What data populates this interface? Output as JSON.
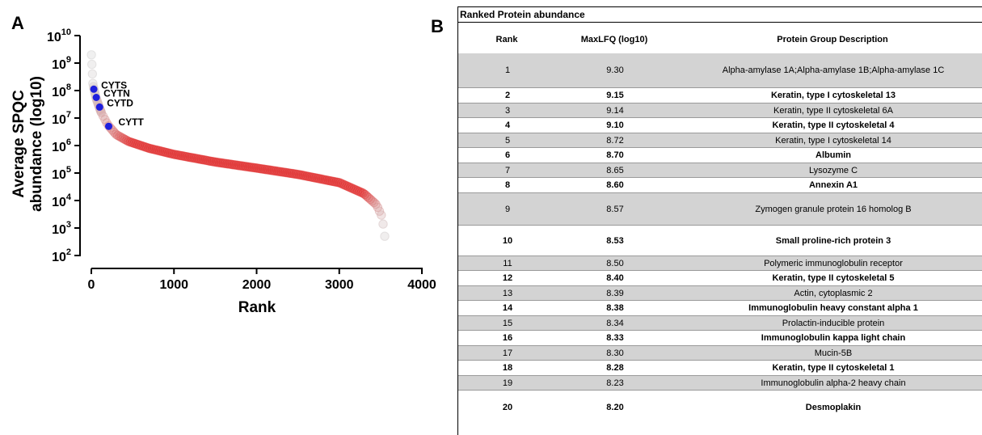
{
  "panels": {
    "a_letter": "A",
    "b_letter": "B"
  },
  "chart_data": {
    "type": "scatter",
    "xlabel": "Rank",
    "ylabel_line1": "Average SPQC",
    "ylabel_line2": "abundance (log10)",
    "xlim": [
      0,
      4000
    ],
    "ylim_log10": [
      2,
      10
    ],
    "xticks": [
      {
        "value": 0,
        "label": "0"
      },
      {
        "value": 1000,
        "label": "1000"
      },
      {
        "value": 2000,
        "label": "2000"
      },
      {
        "value": 3000,
        "label": "3000"
      },
      {
        "value": 4000,
        "label": "4000"
      }
    ],
    "yticks": [
      {
        "value": 2,
        "base": "10",
        "exp": "2"
      },
      {
        "value": 3,
        "base": "10",
        "exp": "3"
      },
      {
        "value": 4,
        "base": "10",
        "exp": "4"
      },
      {
        "value": 5,
        "base": "10",
        "exp": "5"
      },
      {
        "value": 6,
        "base": "10",
        "exp": "6"
      },
      {
        "value": 7,
        "base": "10",
        "exp": "7"
      },
      {
        "value": 8,
        "base": "10",
        "exp": "8"
      },
      {
        "value": 9,
        "base": "10",
        "exp": "9"
      },
      {
        "value": 10,
        "base": "10",
        "exp": "10"
      }
    ],
    "series": [
      {
        "color_start": "#d3d3d3",
        "color_end": "#e03030",
        "curve": [
          {
            "x": 1,
            "y": 9.3
          },
          {
            "x": 20,
            "y": 8.2
          },
          {
            "x": 60,
            "y": 7.7
          },
          {
            "x": 120,
            "y": 7.2
          },
          {
            "x": 200,
            "y": 6.75
          },
          {
            "x": 300,
            "y": 6.4
          },
          {
            "x": 450,
            "y": 6.15
          },
          {
            "x": 700,
            "y": 5.9
          },
          {
            "x": 1000,
            "y": 5.68
          },
          {
            "x": 1500,
            "y": 5.4
          },
          {
            "x": 2000,
            "y": 5.18
          },
          {
            "x": 2500,
            "y": 4.95
          },
          {
            "x": 3000,
            "y": 4.65
          },
          {
            "x": 3300,
            "y": 4.25
          },
          {
            "x": 3450,
            "y": 3.85
          },
          {
            "x": 3520,
            "y": 3.4
          },
          {
            "x": 3550,
            "y": 2.7
          }
        ]
      }
    ],
    "highlight_color": "#1f1fdd",
    "highlights": [
      {
        "label": "CYTS",
        "x": 30,
        "y": 8.05
      },
      {
        "label": "CYTN",
        "x": 60,
        "y": 7.75
      },
      {
        "label": "CYTD",
        "x": 100,
        "y": 7.4
      },
      {
        "label": "CYTT",
        "x": 210,
        "y": 6.7
      }
    ]
  },
  "table": {
    "title": "Ranked Protein abundance",
    "headers": [
      "Rank",
      "MaxLFQ (log10)",
      "Protein Group Description"
    ],
    "rows": [
      {
        "rank": "1",
        "value": "9.30",
        "desc": "Alpha-amylase 1A;Alpha-amylase 1B;Alpha-amylase 1C",
        "shade": true,
        "bold": false,
        "h": 42
      },
      {
        "rank": "2",
        "value": "9.15",
        "desc": "Keratin, type I cytoskeletal 13",
        "shade": false,
        "bold": true,
        "h": 19
      },
      {
        "rank": "3",
        "value": "9.14",
        "desc": "Keratin, type II cytoskeletal 6A",
        "shade": true,
        "bold": false,
        "h": 18
      },
      {
        "rank": "4",
        "value": "9.10",
        "desc": "Keratin, type II cytoskeletal 4",
        "shade": false,
        "bold": true,
        "h": 19
      },
      {
        "rank": "5",
        "value": "8.72",
        "desc": "Keratin, type I cytoskeletal 14",
        "shade": true,
        "bold": false,
        "h": 18
      },
      {
        "rank": "6",
        "value": "8.70",
        "desc": "Albumin",
        "shade": false,
        "bold": true,
        "h": 19
      },
      {
        "rank": "7",
        "value": "8.65",
        "desc": "Lysozyme C",
        "shade": true,
        "bold": false,
        "h": 18
      },
      {
        "rank": "8",
        "value": "8.60",
        "desc": "Annexin A1",
        "shade": false,
        "bold": true,
        "h": 19
      },
      {
        "rank": "9",
        "value": "8.57",
        "desc": "Zymogen granule protein 16 homolog B",
        "shade": true,
        "bold": false,
        "h": 40
      },
      {
        "rank": "10",
        "value": "8.53",
        "desc": "Small proline-rich protein 3",
        "shade": false,
        "bold": true,
        "h": 38
      },
      {
        "rank": "11",
        "value": "8.50",
        "desc": "Polymeric immunoglobulin receptor",
        "shade": true,
        "bold": false,
        "h": 18
      },
      {
        "rank": "12",
        "value": "8.40",
        "desc": "Keratin, type II cytoskeletal 5",
        "shade": false,
        "bold": true,
        "h": 19
      },
      {
        "rank": "13",
        "value": "8.39",
        "desc": "Actin, cytoplasmic 2",
        "shade": true,
        "bold": false,
        "h": 18
      },
      {
        "rank": "14",
        "value": "8.38",
        "desc": "Immunoglobulin heavy constant alpha 1",
        "shade": false,
        "bold": true,
        "h": 19
      },
      {
        "rank": "15",
        "value": "8.34",
        "desc": "Prolactin-inducible protein",
        "shade": true,
        "bold": false,
        "h": 18
      },
      {
        "rank": "16",
        "value": "8.33",
        "desc": "Immunoglobulin kappa light chain",
        "shade": false,
        "bold": true,
        "h": 19
      },
      {
        "rank": "17",
        "value": "8.30",
        "desc": "Mucin-5B",
        "shade": true,
        "bold": false,
        "h": 18
      },
      {
        "rank": "18",
        "value": "8.28",
        "desc": "Keratin, type II cytoskeletal 1",
        "shade": false,
        "bold": true,
        "h": 19
      },
      {
        "rank": "19",
        "value": "8.23",
        "desc": "Immunoglobulin alpha-2 heavy chain",
        "shade": true,
        "bold": false,
        "h": 18
      },
      {
        "rank": "20",
        "value": "8.20",
        "desc": "Desmoplakin",
        "shade": false,
        "bold": true,
        "h": 42
      }
    ]
  }
}
